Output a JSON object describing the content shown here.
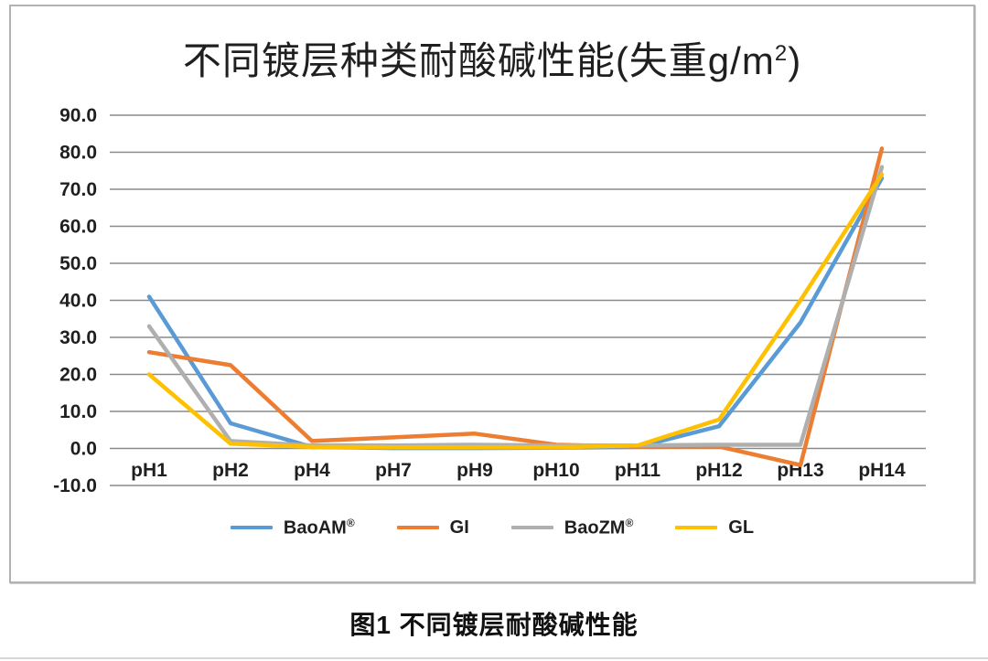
{
  "caption": {
    "text": "图1 不同镀层耐酸碱性能"
  },
  "chart_data": {
    "type": "line",
    "title": "不同镀层种类耐酸碱性能(失重g/m²)",
    "title_parts": {
      "main": "不同镀层种类耐酸碱性能(失重g/m",
      "sup": "2",
      "suffix": ")"
    },
    "xlabel": "",
    "ylabel": "失重 g/m²",
    "ylim": [
      -10,
      90
    ],
    "ytick_step": 10,
    "grid": true,
    "legend_position": "bottom",
    "yticks": [
      "90.0",
      "80.0",
      "70.0",
      "60.0",
      "50.0",
      "40.0",
      "30.0",
      "20.0",
      "10.0",
      "0.0",
      "-10.0"
    ],
    "categories": [
      "pH1",
      "pH2",
      "pH4",
      "pH7",
      "pH9",
      "pH10",
      "pH11",
      "pH12",
      "pH13",
      "pH14"
    ],
    "series": [
      {
        "name": "BaoAM",
        "name_sup": "®",
        "color": "#5B9BD5",
        "values": [
          41,
          6.8,
          0.4,
          0.1,
          0.1,
          0.2,
          0.4,
          6,
          34,
          73
        ]
      },
      {
        "name": "GI",
        "name_sup": "",
        "color": "#ED7D31",
        "values": [
          26,
          22.5,
          2,
          3,
          4,
          1,
          0.5,
          0.5,
          -4.5,
          81
        ]
      },
      {
        "name": "BaoZM",
        "name_sup": "®",
        "color": "#AFAFAF",
        "values": [
          33,
          2,
          0.8,
          0.8,
          1,
          0.8,
          0.8,
          1,
          1,
          76
        ]
      },
      {
        "name": "GL",
        "name_sup": "",
        "color": "#FFC000",
        "values": [
          20,
          1.3,
          0.4,
          0.3,
          0.3,
          0.3,
          0.8,
          7.8,
          40,
          74
        ]
      }
    ]
  }
}
